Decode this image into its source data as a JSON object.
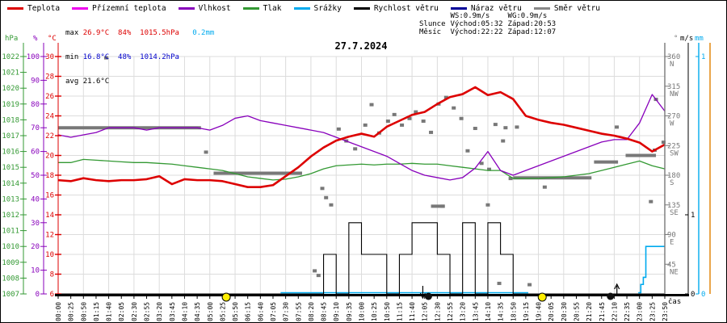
{
  "title": "27.7.2024",
  "legend": {
    "items": [
      {
        "label": "Teplota",
        "color": "#dd0000"
      },
      {
        "label": "Přízemní teplota",
        "color": "#ee00ee"
      },
      {
        "label": "Vlhkost",
        "color": "#8800bb"
      },
      {
        "label": "Tlak",
        "color": "#339933"
      },
      {
        "label": "Srážky",
        "color": "#00aaee"
      },
      {
        "label": "Rychlost větru",
        "color": "#000000"
      },
      {
        "label": "Náraz větru",
        "color": "#000099"
      },
      {
        "label": "Směr větru",
        "color": "#888888"
      }
    ]
  },
  "stats": {
    "max_label": "max",
    "max_temp": "26.9°C",
    "max_hum": "84%",
    "max_pres": "1015.5hPa",
    "max_rain": "0.2mm",
    "min_label": "min",
    "min_temp": "16.8°C",
    "min_hum": "48%",
    "min_pres": "1014.2hPa",
    "avg_label": "avg",
    "avg_temp": "21.6°C",
    "temp_color": "#dd0000",
    "min_color": "#0000cc",
    "rain_color": "#00aaee"
  },
  "sun_moon": {
    "ws": "WS:0.9m/s",
    "wg": "WG:0.9m/s",
    "sun_label": "Slunce",
    "sun_rise": "Východ:05:32",
    "sun_set": "Západ:20:53",
    "moon_label": "Měsíc",
    "moon_rise": "Východ:22:22",
    "moon_set": "Západ:12:07"
  },
  "axis_headers": {
    "pressure": "hPa",
    "humidity": "%",
    "temp": "°C",
    "deg": "°",
    "wind": "m/s",
    "rain": "mm",
    "time": "čas"
  },
  "chart_data": {
    "type": "line",
    "title": "27.7.2024",
    "x_axis_label": "čas",
    "grid": true,
    "x": [
      "00:00",
      "00:25",
      "00:50",
      "01:15",
      "01:40",
      "02:05",
      "02:30",
      "02:55",
      "03:20",
      "03:45",
      "04:10",
      "04:35",
      "05:00",
      "05:25",
      "05:50",
      "06:15",
      "06:40",
      "07:05",
      "07:30",
      "07:55",
      "08:20",
      "08:45",
      "09:10",
      "09:35",
      "10:00",
      "10:25",
      "10:50",
      "11:15",
      "11:40",
      "12:05",
      "12:30",
      "12:55",
      "13:20",
      "13:45",
      "14:10",
      "14:35",
      "18:50",
      "19:15",
      "19:40",
      "20:05",
      "20:30",
      "20:55",
      "21:20",
      "21:45",
      "22:10",
      "22:35",
      "23:00",
      "23:25",
      "23:50"
    ],
    "axes": {
      "temp": {
        "label": "°C",
        "color": "#dd0000",
        "min": 6,
        "max": 30,
        "ticks": [
          6,
          8,
          10,
          12,
          14,
          16,
          18,
          20,
          22,
          24,
          26,
          28,
          30
        ]
      },
      "hum": {
        "label": "%",
        "color": "#8800bb",
        "min": 0,
        "max": 100,
        "ticks": [
          0,
          10,
          20,
          30,
          40,
          50,
          60,
          70,
          80,
          90,
          100
        ]
      },
      "pres": {
        "label": "hPa",
        "color": "#339933",
        "min": 1007,
        "max": 1022,
        "ticks": [
          1007,
          1008,
          1009,
          1010,
          1011,
          1012,
          1013,
          1014,
          1015,
          1016,
          1017,
          1018,
          1019,
          1020,
          1021,
          1022
        ]
      },
      "deg": {
        "label": "°",
        "color": "#777777",
        "min": 0,
        "max": 360,
        "ticks": [
          {
            "v": 45,
            "c": "NE"
          },
          {
            "v": 90,
            "c": "E"
          },
          {
            "v": 135,
            "c": "SE"
          },
          {
            "v": 180,
            "c": "S"
          },
          {
            "v": 225,
            "c": "SW"
          },
          {
            "v": 270,
            "c": "W"
          },
          {
            "v": 315,
            "c": "NW"
          },
          {
            "v": 360,
            "c": "N"
          }
        ]
      },
      "ms": {
        "label": "m/s",
        "color": "#000000",
        "min": 0,
        "max": 3,
        "ticks": [
          0,
          1
        ]
      },
      "mm": {
        "label": "mm",
        "color": "#00aaee",
        "min": 0,
        "max": 1,
        "ticks": [
          0,
          1
        ]
      }
    },
    "series": [
      {
        "name": "Teplota",
        "axis": "temp",
        "color": "#dd0000",
        "width": 2.6,
        "values": [
          17.5,
          17.4,
          17.7,
          17.5,
          17.4,
          17.5,
          17.5,
          17.6,
          17.9,
          17.1,
          17.6,
          17.5,
          17.5,
          17.4,
          17.1,
          16.8,
          16.8,
          17.0,
          17.9,
          18.8,
          19.9,
          20.8,
          21.5,
          21.9,
          22.2,
          21.9,
          22.9,
          23.5,
          24.1,
          24.4,
          25.2,
          25.9,
          26.2,
          26.9,
          26.1,
          26.4,
          25.7,
          24.0,
          23.6,
          23.3,
          23.1,
          22.8,
          22.5,
          22.2,
          22.0,
          21.7,
          21.3,
          20.4,
          21.1
        ]
      },
      {
        "name": "Vlhkost",
        "axis": "hum",
        "color": "#8800bb",
        "width": 1.3,
        "values": [
          67,
          66,
          67,
          68,
          70,
          70,
          70,
          69,
          70,
          70,
          70,
          70,
          69,
          71,
          74,
          75,
          73,
          72,
          71,
          70,
          69,
          68,
          66,
          64,
          62,
          60,
          58,
          55,
          52,
          50,
          49,
          48,
          49,
          53,
          60,
          52,
          50,
          52,
          54,
          56,
          58,
          60,
          62,
          64,
          65,
          65,
          72,
          84,
          77
        ]
      },
      {
        "name": "Tlak",
        "axis": "pres",
        "color": "#339933",
        "width": 1.3,
        "values": [
          1015.3,
          1015.3,
          1015.5,
          1015.45,
          1015.4,
          1015.35,
          1015.3,
          1015.3,
          1015.25,
          1015.2,
          1015.1,
          1015.0,
          1014.9,
          1014.8,
          1014.6,
          1014.4,
          1014.3,
          1014.2,
          1014.25,
          1014.4,
          1014.6,
          1014.9,
          1015.1,
          1015.15,
          1015.2,
          1015.15,
          1015.2,
          1015.2,
          1015.25,
          1015.2,
          1015.2,
          1015.1,
          1015.0,
          1014.9,
          1014.8,
          1014.8,
          1014.3,
          1014.3,
          1014.3,
          1014.35,
          1014.4,
          1014.5,
          1014.6,
          1014.8,
          1015.0,
          1015.2,
          1015.4,
          1015.1,
          1014.9
        ]
      },
      {
        "name": "Rychlost větru",
        "axis": "ms",
        "color": "#000000",
        "width": 1.1,
        "step": true,
        "values": [
          0,
          0,
          0,
          0,
          0,
          0,
          0,
          0,
          0,
          0,
          0,
          0,
          0,
          0,
          0,
          0,
          0,
          0,
          0,
          0,
          0,
          0.5,
          0,
          0.9,
          0.5,
          0.5,
          0,
          0.5,
          0.9,
          0.9,
          0.5,
          0,
          0.9,
          0,
          0.9,
          0.5,
          0,
          0,
          0,
          0,
          0,
          0,
          0,
          0,
          0,
          0,
          0,
          0,
          0
        ]
      }
    ],
    "precip_cumulative": {
      "name": "Srážky",
      "axis": "mm",
      "color": "#00aaee",
      "width": 1.6,
      "polylines": [
        [
          [
            17.6,
            0
          ],
          [
            37.2,
            0
          ]
        ],
        [
          [
            45.9,
            0
          ],
          [
            46.1,
            0.04
          ],
          [
            46.3,
            0.07
          ],
          [
            46.5,
            0.2
          ],
          [
            48,
            0.2
          ]
        ]
      ],
      "total_mm": 0.2
    },
    "wind_direction": {
      "name": "Směr větru",
      "color": "#787878",
      "segments": [
        {
          "from": 0,
          "to": 11.3,
          "deg": 252
        },
        {
          "from": 12.3,
          "to": 19.3,
          "deg": 183
        },
        {
          "from": 29.5,
          "to": 30.6,
          "deg": 133
        },
        {
          "from": 36,
          "to": 42.2,
          "deg": 176
        },
        {
          "from": 42.4,
          "to": 44.3,
          "deg": 200
        },
        {
          "from": 44.9,
          "to": 47.3,
          "deg": 210
        }
      ],
      "points": [
        [
          3.8,
          358
        ],
        [
          11.7,
          215
        ],
        [
          20.3,
          35
        ],
        [
          20.6,
          28
        ],
        [
          20.9,
          160
        ],
        [
          21.2,
          146
        ],
        [
          21.6,
          135
        ],
        [
          22.2,
          250
        ],
        [
          22.8,
          232
        ],
        [
          23.5,
          220
        ],
        [
          24.3,
          256
        ],
        [
          24.8,
          287
        ],
        [
          25.4,
          244
        ],
        [
          26.1,
          262
        ],
        [
          26.6,
          272
        ],
        [
          27.2,
          256
        ],
        [
          27.8,
          266
        ],
        [
          28.3,
          276
        ],
        [
          28.9,
          262
        ],
        [
          29.5,
          245
        ],
        [
          30.1,
          288
        ],
        [
          30.4,
          133
        ],
        [
          30.7,
          298
        ],
        [
          31.3,
          282
        ],
        [
          31.9,
          266
        ],
        [
          32.4,
          217
        ],
        [
          33.0,
          251
        ],
        [
          33.5,
          198
        ],
        [
          34.0,
          135
        ],
        [
          34.1,
          189
        ],
        [
          34.6,
          257
        ],
        [
          34.9,
          16
        ],
        [
          35.2,
          232
        ],
        [
          35.4,
          252
        ],
        [
          35.8,
          175
        ],
        [
          36.3,
          253
        ],
        [
          37.3,
          14
        ],
        [
          38.5,
          162
        ],
        [
          44.2,
          253
        ],
        [
          46.9,
          140
        ],
        [
          47.2,
          218
        ],
        [
          47.3,
          295
        ],
        [
          47.9,
          230
        ]
      ]
    },
    "markers": [
      {
        "type": "sunrise",
        "i": 13.3,
        "time": "05:32"
      },
      {
        "type": "moonset",
        "i": 29.3,
        "time": "12:07"
      },
      {
        "type": "sunset",
        "i": 38.3,
        "time": "20:53"
      },
      {
        "type": "moonrise",
        "i": 43.7,
        "time": "22:22"
      }
    ],
    "colors": {
      "grid": "#dcdcdc",
      "sun": "#ffee00",
      "moon": "#111111",
      "orange_axis": "#e08000"
    }
  }
}
